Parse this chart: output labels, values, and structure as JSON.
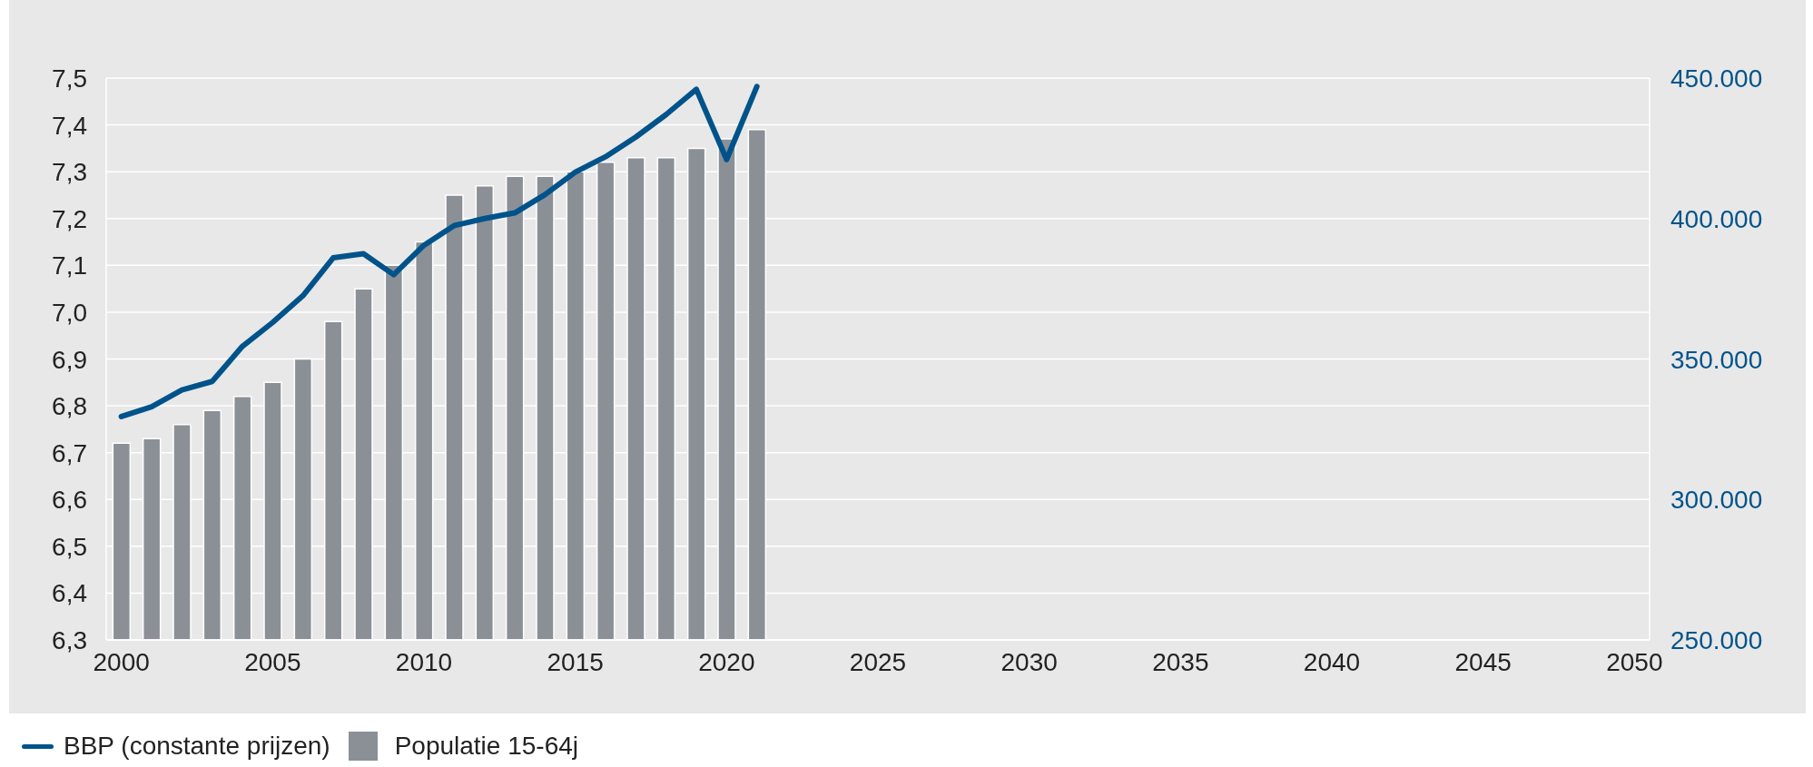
{
  "chart_data": {
    "type": "bar",
    "categories": [
      "2000",
      null,
      null,
      null,
      null,
      "2005",
      null,
      null,
      null,
      null,
      "2010",
      null,
      null,
      null,
      null,
      "2015",
      null,
      null,
      null,
      null,
      "2020",
      null,
      null,
      null,
      null,
      "2025",
      null,
      null,
      null,
      null,
      "2030",
      null,
      null,
      null,
      null,
      "2035",
      null,
      null,
      null,
      null,
      "2040",
      null,
      null,
      null,
      null,
      "2045",
      null,
      null,
      null,
      null,
      "2050"
    ],
    "series": [
      {
        "name": "BBP (constante prijzen)",
        "type": "line",
        "axis": "y2",
        "color": "#00538a",
        "values": [
          329500,
          333000,
          339000,
          342000,
          354500,
          363000,
          372500,
          386000,
          387500,
          380000,
          390500,
          397500,
          400000,
          402000,
          408500,
          416500,
          422000,
          429000,
          437000,
          446000,
          421000,
          447000,
          null,
          null,
          null,
          null,
          null,
          null,
          null,
          null,
          null,
          null,
          null,
          null,
          null,
          null,
          null,
          null,
          null,
          null,
          null,
          null,
          null,
          null,
          null,
          null,
          null,
          null,
          null,
          null,
          null
        ]
      },
      {
        "name": "Populatie 15-64j",
        "color": "#8b9097",
        "values": [
          6.72,
          6.73,
          6.76,
          6.79,
          6.82,
          6.85,
          6.9,
          6.98,
          7.05,
          7.1,
          7.15,
          7.25,
          7.27,
          7.29,
          7.29,
          7.3,
          7.32,
          7.33,
          7.33,
          7.35,
          7.37,
          7.39,
          null,
          null,
          null,
          null,
          null,
          null,
          null,
          null,
          null,
          null,
          null,
          null,
          null,
          null,
          null,
          null,
          null,
          null,
          null,
          null,
          null,
          null,
          null,
          null,
          null,
          null,
          null,
          null,
          null
        ]
      }
    ],
    "ylim": [
      6.3,
      7.5
    ],
    "yticks": [
      {
        "value": 6.3,
        "label": "6,3"
      },
      {
        "value": 6.4,
        "label": "6,4"
      },
      {
        "value": 6.5,
        "label": "6,5"
      },
      {
        "value": 6.6,
        "label": "6,6"
      },
      {
        "value": 6.7,
        "label": "6,7"
      },
      {
        "value": 6.8,
        "label": "6,8"
      },
      {
        "value": 6.9,
        "label": "6,9"
      },
      {
        "value": 7.0,
        "label": "7,0"
      },
      {
        "value": 7.1,
        "label": "7,1"
      },
      {
        "value": 7.2,
        "label": "7,2"
      },
      {
        "value": 7.3,
        "label": "7,3"
      },
      {
        "value": 7.4,
        "label": "7,4"
      },
      {
        "value": 7.5,
        "label": "7,5"
      }
    ],
    "y2lim": [
      250000,
      450000
    ],
    "y2ticks": [
      {
        "value": 250000,
        "label": "250.000"
      },
      {
        "value": 300000,
        "label": "300.000"
      },
      {
        "value": 350000,
        "label": "350.000"
      },
      {
        "value": 400000,
        "label": "400.000"
      },
      {
        "value": 450000,
        "label": "450.000"
      }
    ],
    "grid": "y",
    "legend": "bottom left",
    "line_style": "solid"
  }
}
